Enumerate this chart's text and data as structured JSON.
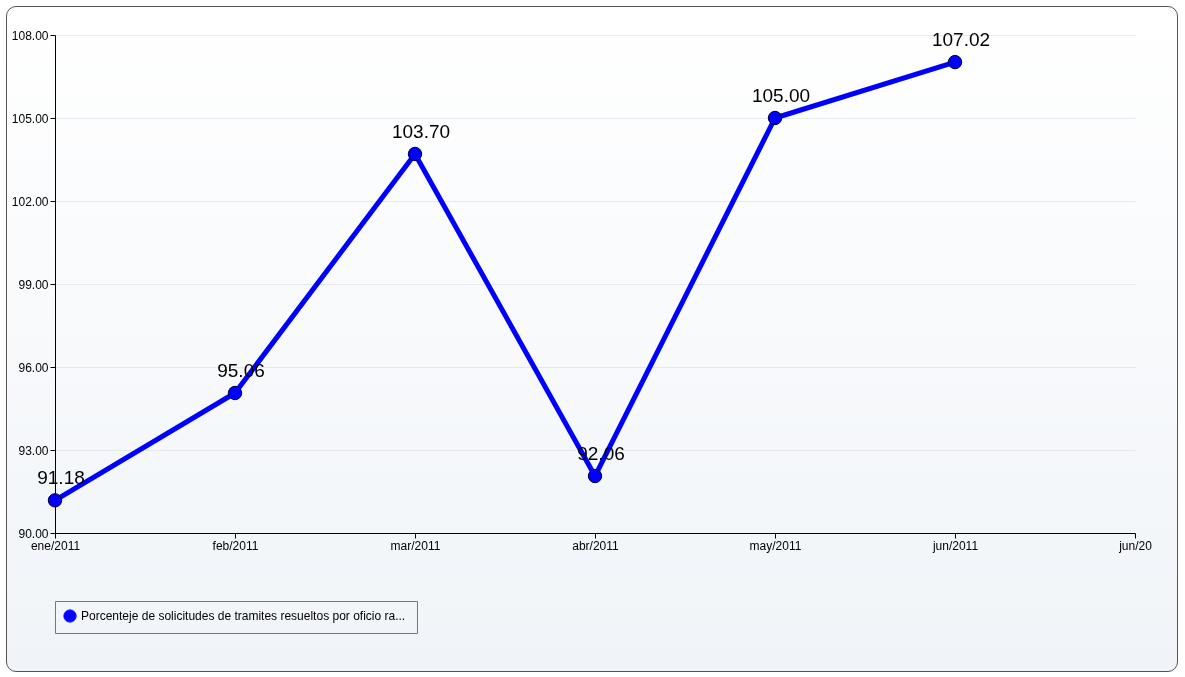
{
  "chart_data": {
    "type": "line",
    "categories": [
      "ene/2011",
      "feb/2011",
      "mar/2011",
      "abr/2011",
      "may/2011",
      "jun/2011",
      "jun/20"
    ],
    "series": [
      {
        "name": "Porcenteje de  solicitudes de tramites resueltos por oficio ra...",
        "color": "#0000ff",
        "values": [
          91.18,
          95.06,
          103.7,
          92.06,
          105.0,
          107.02,
          null
        ],
        "value_labels": [
          "91.18",
          "95.06",
          "103.70",
          "92.06",
          "105.00",
          "107.02",
          null
        ]
      }
    ],
    "ylim": [
      90,
      108
    ],
    "yticks": [
      {
        "value": 90,
        "label": "90.00"
      },
      {
        "value": 93,
        "label": "93.00"
      },
      {
        "value": 96,
        "label": "96.00"
      },
      {
        "value": 99,
        "label": "99.00"
      },
      {
        "value": 102,
        "label": "102.00"
      },
      {
        "value": 105,
        "label": "105.00"
      },
      {
        "value": 108,
        "label": "108.00"
      }
    ],
    "grid": "y",
    "legend": "bottom",
    "marker": "circle",
    "line_style": "solid"
  }
}
